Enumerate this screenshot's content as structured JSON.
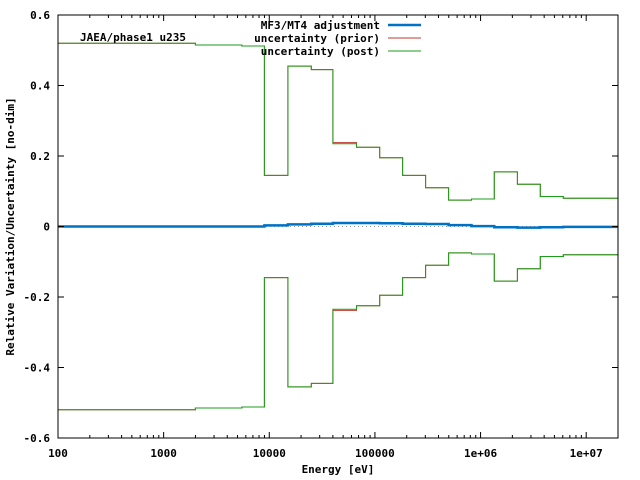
{
  "chart_data": {
    "type": "line",
    "title": "",
    "annotation": "JAEA/phase1 u235",
    "xlabel": "Energy [eV]",
    "ylabel": "Relative Variation/Uncertainty [no-dim]",
    "x_scale": "log",
    "xlim": [
      100,
      20000000
    ],
    "ylim": [
      -0.6,
      0.6
    ],
    "x_ticks": [
      100,
      1000,
      10000,
      100000,
      1000000,
      10000000
    ],
    "x_tick_labels": [
      "100",
      "1000",
      "10000",
      "100000",
      "1e+06",
      "1e+07"
    ],
    "y_ticks": [
      -0.6,
      -0.4,
      -0.2,
      0,
      0.2,
      0.4,
      0.6
    ],
    "y_tick_labels": [
      "-0.6",
      "-0.4",
      "-0.2",
      "0",
      "0.2",
      "0.4",
      "0.6"
    ],
    "grid": false,
    "legend_position": "top-right",
    "zero_reference_line": true,
    "group_boundaries": [
      100,
      2000,
      5500,
      9000,
      15000,
      25000,
      40000,
      67000,
      111000,
      183000,
      302000,
      498000,
      821000,
      1350000,
      2230000,
      3680000,
      6070000,
      20000000
    ],
    "series": [
      {
        "name": "MF3/MT4 adjustment",
        "color": "#0072c6",
        "style": "step",
        "values": [
          0,
          0,
          0,
          0.003,
          0.006,
          0.008,
          0.01,
          0.01,
          0.009,
          0.008,
          0.007,
          0.004,
          0.001,
          -0.002,
          -0.003,
          -0.002,
          -0.001
        ]
      },
      {
        "name": "uncertainty (prior)",
        "color": "#c0392b",
        "style": "step-symmetric",
        "values": [
          0.52,
          0.515,
          0.512,
          0.145,
          0.455,
          0.445,
          0.238,
          0.225,
          0.195,
          0.145,
          0.11,
          0.075,
          0.078,
          0.155,
          0.12,
          0.085,
          0.08
        ]
      },
      {
        "name": "uncertainty (post)",
        "color": "#1a9e1a",
        "style": "step-symmetric",
        "values": [
          0.52,
          0.515,
          0.512,
          0.145,
          0.455,
          0.445,
          0.235,
          0.225,
          0.195,
          0.145,
          0.11,
          0.075,
          0.078,
          0.155,
          0.12,
          0.085,
          0.08
        ]
      }
    ]
  }
}
